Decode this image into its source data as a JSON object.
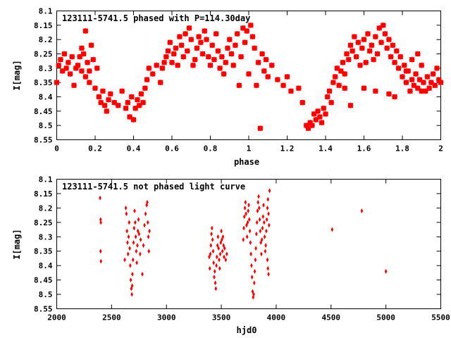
{
  "colors": {
    "points": "#ff0000",
    "axes": "#000000",
    "background": "#ffffff"
  },
  "chart_data": [
    {
      "type": "scatter",
      "title": "123111-5741.5 phased with P=114.30day",
      "xlabel": "phase",
      "ylabel": "I[mag]",
      "xlim": [
        0,
        2
      ],
      "ylim": [
        8.1,
        8.55
      ],
      "y_inverted": true,
      "grid": false,
      "xticks": [
        0,
        0.2,
        0.4,
        0.6,
        0.8,
        1,
        1.2,
        1.4,
        1.6,
        1.8,
        2
      ],
      "xtick_labels": [
        "0",
        "0.2",
        "0.4",
        "0.6",
        "0.8",
        "1",
        "1.2",
        "1.4",
        "1.6",
        "1.8",
        "2"
      ],
      "yticks": [
        8.1,
        8.15,
        8.2,
        8.25,
        8.3,
        8.35,
        8.4,
        8.45,
        8.5,
        8.55
      ],
      "ytick_labels": [
        "8.1",
        "8.15",
        "8.2",
        "8.25",
        "8.3",
        "8.35",
        "8.4",
        "8.45",
        "8.5",
        "8.55"
      ],
      "marker": "star",
      "points": [
        [
          0.0,
          8.35
        ],
        [
          0.01,
          8.29
        ],
        [
          0.02,
          8.27
        ],
        [
          0.03,
          8.31
        ],
        [
          0.04,
          8.25
        ],
        [
          0.05,
          8.3
        ],
        [
          0.06,
          8.28
        ],
        [
          0.07,
          8.32
        ],
        [
          0.08,
          8.26
        ],
        [
          0.09,
          8.36
        ],
        [
          0.1,
          8.3
        ],
        [
          0.11,
          8.29
        ],
        [
          0.12,
          8.26
        ],
        [
          0.13,
          8.23
        ],
        [
          0.14,
          8.25
        ],
        [
          0.15,
          8.17
        ],
        [
          0.16,
          8.28
        ],
        [
          0.17,
          8.31
        ],
        [
          0.18,
          8.22
        ],
        [
          0.19,
          8.27
        ],
        [
          0.13,
          8.31
        ],
        [
          0.15,
          8.33
        ],
        [
          0.17,
          8.35
        ],
        [
          0.2,
          8.37
        ],
        [
          0.21,
          8.3
        ],
        [
          0.22,
          8.4
        ],
        [
          0.23,
          8.42
        ],
        [
          0.24,
          8.38
        ],
        [
          0.25,
          8.43
        ],
        [
          0.26,
          8.45
        ],
        [
          0.27,
          8.41
        ],
        [
          0.28,
          8.39
        ],
        [
          0.3,
          8.42
        ],
        [
          0.32,
          8.43
        ],
        [
          0.34,
          8.38
        ],
        [
          0.36,
          8.44
        ],
        [
          0.37,
          8.42
        ],
        [
          0.38,
          8.47
        ],
        [
          0.39,
          8.4
        ],
        [
          0.4,
          8.48
        ],
        [
          0.41,
          8.44
        ],
        [
          0.42,
          8.41
        ],
        [
          0.43,
          8.43
        ],
        [
          0.44,
          8.39
        ],
        [
          0.45,
          8.42
        ],
        [
          0.46,
          8.37
        ],
        [
          0.47,
          8.34
        ],
        [
          0.48,
          8.3
        ],
        [
          0.5,
          8.32
        ],
        [
          0.52,
          8.29
        ],
        [
          0.54,
          8.35
        ],
        [
          0.55,
          8.3
        ],
        [
          0.56,
          8.28
        ],
        [
          0.57,
          8.26
        ],
        [
          0.58,
          8.24
        ],
        [
          0.59,
          8.21
        ],
        [
          0.6,
          8.28
        ],
        [
          0.61,
          8.25
        ],
        [
          0.62,
          8.23
        ],
        [
          0.63,
          8.29
        ],
        [
          0.64,
          8.19
        ],
        [
          0.65,
          8.22
        ],
        [
          0.66,
          8.26
        ],
        [
          0.67,
          8.18
        ],
        [
          0.68,
          8.24
        ],
        [
          0.69,
          8.16
        ],
        [
          0.7,
          8.2
        ],
        [
          0.71,
          8.29
        ],
        [
          0.72,
          8.27
        ],
        [
          0.73,
          8.23
        ],
        [
          0.74,
          8.19
        ],
        [
          0.75,
          8.21
        ],
        [
          0.76,
          8.25
        ],
        [
          0.77,
          8.17
        ],
        [
          0.78,
          8.2
        ],
        [
          0.79,
          8.26
        ],
        [
          0.8,
          8.29
        ],
        [
          0.81,
          8.22
        ],
        [
          0.82,
          8.27
        ],
        [
          0.83,
          8.18
        ],
        [
          0.84,
          8.24
        ],
        [
          0.85,
          8.3
        ],
        [
          0.86,
          8.26
        ],
        [
          0.87,
          8.32
        ],
        [
          0.88,
          8.28
        ],
        [
          0.89,
          8.23
        ],
        [
          0.9,
          8.2
        ],
        [
          0.91,
          8.25
        ],
        [
          0.92,
          8.29
        ],
        [
          0.93,
          8.22
        ],
        [
          0.94,
          8.18
        ],
        [
          0.95,
          8.36
        ],
        [
          0.96,
          8.26
        ],
        [
          0.97,
          8.16
        ],
        [
          0.98,
          8.21
        ],
        [
          0.99,
          8.17
        ],
        [
          1.0,
          8.32
        ],
        [
          1.01,
          8.15
        ],
        [
          1.02,
          8.19
        ],
        [
          1.03,
          8.23
        ],
        [
          1.04,
          8.36
        ],
        [
          1.05,
          8.28
        ],
        [
          1.06,
          8.51
        ],
        [
          1.07,
          8.25
        ],
        [
          1.08,
          8.31
        ],
        [
          1.09,
          8.27
        ],
        [
          1.1,
          8.33
        ],
        [
          1.12,
          8.29
        ],
        [
          1.15,
          8.34
        ],
        [
          1.18,
          8.36
        ],
        [
          1.2,
          8.33
        ],
        [
          1.22,
          8.38
        ],
        [
          1.26,
          8.37
        ],
        [
          1.28,
          8.42
        ],
        [
          1.3,
          8.5
        ],
        [
          1.31,
          8.51
        ],
        [
          1.32,
          8.49
        ],
        [
          1.33,
          8.5
        ],
        [
          1.34,
          8.46
        ],
        [
          1.35,
          8.48
        ],
        [
          1.36,
          8.45
        ],
        [
          1.37,
          8.47
        ],
        [
          1.38,
          8.49
        ],
        [
          1.39,
          8.44
        ],
        [
          1.4,
          8.46
        ],
        [
          1.41,
          8.4
        ],
        [
          1.42,
          8.38
        ],
        [
          1.43,
          8.42
        ],
        [
          1.44,
          8.35
        ],
        [
          1.45,
          8.33
        ],
        [
          1.46,
          8.3
        ],
        [
          1.47,
          8.36
        ],
        [
          1.48,
          8.31
        ],
        [
          1.49,
          8.28
        ],
        [
          1.5,
          8.32
        ],
        [
          1.51,
          8.25
        ],
        [
          1.52,
          8.27
        ],
        [
          1.53,
          8.22
        ],
        [
          1.54,
          8.24
        ],
        [
          1.55,
          8.19
        ],
        [
          1.56,
          8.26
        ],
        [
          1.57,
          8.21
        ],
        [
          1.58,
          8.29
        ],
        [
          1.59,
          8.23
        ],
        [
          1.6,
          8.2
        ],
        [
          1.61,
          8.28
        ],
        [
          1.62,
          8.18
        ],
        [
          1.63,
          8.24
        ],
        [
          1.64,
          8.22
        ],
        [
          1.65,
          8.27
        ],
        [
          1.66,
          8.19
        ],
        [
          1.67,
          8.25
        ],
        [
          1.68,
          8.16
        ],
        [
          1.69,
          8.21
        ],
        [
          1.7,
          8.15
        ],
        [
          1.71,
          8.18
        ],
        [
          1.72,
          8.23
        ],
        [
          1.73,
          8.2
        ],
        [
          1.74,
          8.26
        ],
        [
          1.75,
          8.22
        ],
        [
          1.76,
          8.28
        ],
        [
          1.77,
          8.24
        ],
        [
          1.78,
          8.3
        ],
        [
          1.79,
          8.26
        ],
        [
          1.8,
          8.33
        ],
        [
          1.81,
          8.29
        ],
        [
          1.82,
          8.35
        ],
        [
          1.83,
          8.31
        ],
        [
          1.84,
          8.38
        ],
        [
          1.85,
          8.34
        ],
        [
          1.86,
          8.36
        ],
        [
          1.87,
          8.32
        ],
        [
          1.88,
          8.37
        ],
        [
          1.89,
          8.34
        ],
        [
          1.9,
          8.38
        ],
        [
          1.91,
          8.35
        ],
        [
          1.92,
          8.38
        ],
        [
          1.93,
          8.33
        ],
        [
          1.94,
          8.37
        ],
        [
          1.95,
          8.35
        ],
        [
          1.96,
          8.32
        ],
        [
          1.97,
          8.36
        ],
        [
          1.98,
          8.3
        ],
        [
          1.99,
          8.34
        ],
        [
          2.0,
          8.35
        ],
        [
          1.5,
          8.37
        ],
        [
          1.53,
          8.43
        ],
        [
          1.6,
          8.37
        ],
        [
          1.66,
          8.38
        ],
        [
          1.73,
          8.39
        ],
        [
          1.76,
          8.4
        ],
        [
          1.82,
          8.31
        ],
        [
          1.85,
          8.27
        ],
        [
          1.88,
          8.25
        ],
        [
          1.9,
          8.29
        ]
      ]
    },
    {
      "type": "scatter",
      "title": "123111-5741.5 not phased light curve",
      "xlabel": "hjd0",
      "ylabel": "I[mag]",
      "xlim": [
        2000,
        5500
      ],
      "ylim": [
        8.1,
        8.55
      ],
      "y_inverted": true,
      "grid": false,
      "xticks": [
        2000,
        2500,
        3000,
        3500,
        4000,
        4500,
        5000,
        5500
      ],
      "xtick_labels": [
        "2000",
        "2500",
        "3000",
        "3500",
        "4000",
        "4500",
        "5000",
        "5500"
      ],
      "yticks": [
        8.1,
        8.15,
        8.2,
        8.25,
        8.3,
        8.35,
        8.4,
        8.45,
        8.5,
        8.55
      ],
      "ytick_labels": [
        "8.1",
        "8.15",
        "8.2",
        "8.25",
        "8.3",
        "8.35",
        "8.4",
        "8.45",
        "8.5",
        "8.55"
      ],
      "marker": "diamond",
      "points": [
        [
          2395,
          8.165
        ],
        [
          2400,
          8.24
        ],
        [
          2402,
          8.25
        ],
        [
          2400,
          8.35
        ],
        [
          2403,
          8.385
        ],
        [
          2620,
          8.38
        ],
        [
          2630,
          8.2
        ],
        [
          2635,
          8.22
        ],
        [
          2640,
          8.28
        ],
        [
          2645,
          8.32
        ],
        [
          2650,
          8.36
        ],
        [
          2655,
          8.3
        ],
        [
          2660,
          8.25
        ],
        [
          2665,
          8.34
        ],
        [
          2670,
          8.4
        ],
        [
          2675,
          8.45
        ],
        [
          2680,
          8.48
        ],
        [
          2685,
          8.5
        ],
        [
          2688,
          8.47
        ],
        [
          2690,
          8.43
        ],
        [
          2695,
          8.38
        ],
        [
          2700,
          8.32
        ],
        [
          2705,
          8.27
        ],
        [
          2710,
          8.21
        ],
        [
          2715,
          8.25
        ],
        [
          2720,
          8.3
        ],
        [
          2725,
          8.35
        ],
        [
          2730,
          8.39
        ],
        [
          2735,
          8.33
        ],
        [
          2740,
          8.28
        ],
        [
          2745,
          8.24
        ],
        [
          2750,
          8.29
        ],
        [
          2760,
          8.36
        ],
        [
          2765,
          8.31
        ],
        [
          2780,
          8.43
        ],
        [
          2790,
          8.33
        ],
        [
          2800,
          8.26
        ],
        [
          2810,
          8.22
        ],
        [
          2820,
          8.19
        ],
        [
          2825,
          8.18
        ],
        [
          2830,
          8.25
        ],
        [
          2835,
          8.3
        ],
        [
          2840,
          8.35
        ],
        [
          2845,
          8.28
        ],
        [
          3390,
          8.37
        ],
        [
          3395,
          8.41
        ],
        [
          3400,
          8.36
        ],
        [
          3405,
          8.33
        ],
        [
          3410,
          8.29
        ],
        [
          3415,
          8.27
        ],
        [
          3420,
          8.31
        ],
        [
          3425,
          8.35
        ],
        [
          3430,
          8.39
        ],
        [
          3435,
          8.44
        ],
        [
          3440,
          8.42
        ],
        [
          3445,
          8.46
        ],
        [
          3450,
          8.48
        ],
        [
          3455,
          8.4
        ],
        [
          3460,
          8.37
        ],
        [
          3465,
          8.33
        ],
        [
          3470,
          8.3
        ],
        [
          3475,
          8.34
        ],
        [
          3480,
          8.38
        ],
        [
          3485,
          8.41
        ],
        [
          3490,
          8.36
        ],
        [
          3495,
          8.32
        ],
        [
          3500,
          8.28
        ],
        [
          3505,
          8.31
        ],
        [
          3510,
          8.35
        ],
        [
          3515,
          8.3
        ],
        [
          3520,
          8.33
        ],
        [
          3525,
          8.37
        ],
        [
          3530,
          8.34
        ],
        [
          3540,
          8.38
        ],
        [
          3550,
          8.36
        ],
        [
          3700,
          8.31
        ],
        [
          3705,
          8.27
        ],
        [
          3710,
          8.23
        ],
        [
          3715,
          8.2
        ],
        [
          3720,
          8.18
        ],
        [
          3725,
          8.22
        ],
        [
          3730,
          8.26
        ],
        [
          3735,
          8.3
        ],
        [
          3740,
          8.25
        ],
        [
          3745,
          8.21
        ],
        [
          3750,
          8.19
        ],
        [
          3755,
          8.24
        ],
        [
          3760,
          8.28
        ],
        [
          3765,
          8.32
        ],
        [
          3770,
          8.36
        ],
        [
          3775,
          8.4
        ],
        [
          3780,
          8.44
        ],
        [
          3785,
          8.49
        ],
        [
          3790,
          8.51
        ],
        [
          3795,
          8.5
        ],
        [
          3800,
          8.46
        ],
        [
          3805,
          8.42
        ],
        [
          3810,
          8.38
        ],
        [
          3815,
          8.34
        ],
        [
          3820,
          8.29
        ],
        [
          3825,
          8.25
        ],
        [
          3830,
          8.21
        ],
        [
          3835,
          8.18
        ],
        [
          3840,
          8.16
        ],
        [
          3845,
          8.2
        ],
        [
          3850,
          8.24
        ],
        [
          3855,
          8.28
        ],
        [
          3860,
          8.32
        ],
        [
          3865,
          8.36
        ],
        [
          3870,
          8.31
        ],
        [
          3875,
          8.27
        ],
        [
          3880,
          8.23
        ],
        [
          3885,
          8.19
        ],
        [
          3890,
          8.25
        ],
        [
          3895,
          8.3
        ],
        [
          3900,
          8.35
        ],
        [
          3905,
          8.33
        ],
        [
          3910,
          8.28
        ],
        [
          3915,
          8.24
        ],
        [
          3920,
          8.2
        ],
        [
          3925,
          8.17
        ],
        [
          3930,
          8.22
        ],
        [
          3935,
          8.26
        ],
        [
          3940,
          8.14
        ],
        [
          3920,
          8.38
        ],
        [
          3925,
          8.41
        ],
        [
          3930,
          8.43
        ],
        [
          4510,
          8.275
        ],
        [
          4780,
          8.21
        ],
        [
          5000,
          8.42
        ]
      ]
    }
  ]
}
